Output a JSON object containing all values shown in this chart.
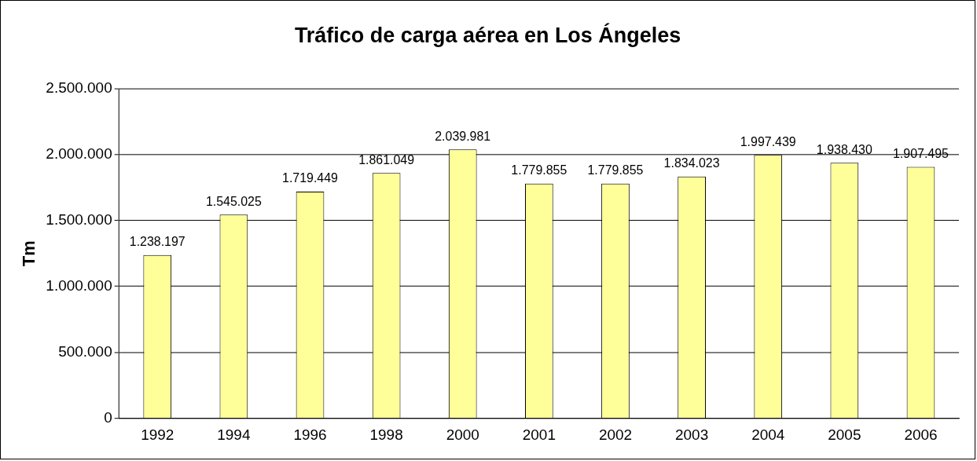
{
  "chart_data": {
    "type": "bar",
    "title": "Tráfico de carga aérea en Los Ángeles",
    "ylabel": "Tm",
    "categories": [
      "1992",
      "1994",
      "1996",
      "1998",
      "2000",
      "2001",
      "2002",
      "2003",
      "2004",
      "2005",
      "2006"
    ],
    "values": [
      1238197,
      1545025,
      1719449,
      1861049,
      2039981,
      1779855,
      1779855,
      1834023,
      1997439,
      1938430,
      1907495
    ],
    "value_labels": [
      "1.238.197",
      "1.545.025",
      "1.719.449",
      "1.861.049",
      "2.039.981",
      "1.779.855",
      "1.779.855",
      "1.834.023",
      "1.997.439",
      "1.938.430",
      "1.907.495"
    ],
    "color": "#ffff99",
    "ylim": [
      0,
      2500000
    ],
    "yticks": [
      {
        "value": 0,
        "label": "0"
      },
      {
        "value": 500000,
        "label": "500.000"
      },
      {
        "value": 1000000,
        "label": "1.000.000"
      },
      {
        "value": 1500000,
        "label": "1.500.000"
      },
      {
        "value": 2000000,
        "label": "2.000.000"
      },
      {
        "value": 2500000,
        "label": "2.500.000"
      }
    ],
    "grid": "y"
  }
}
